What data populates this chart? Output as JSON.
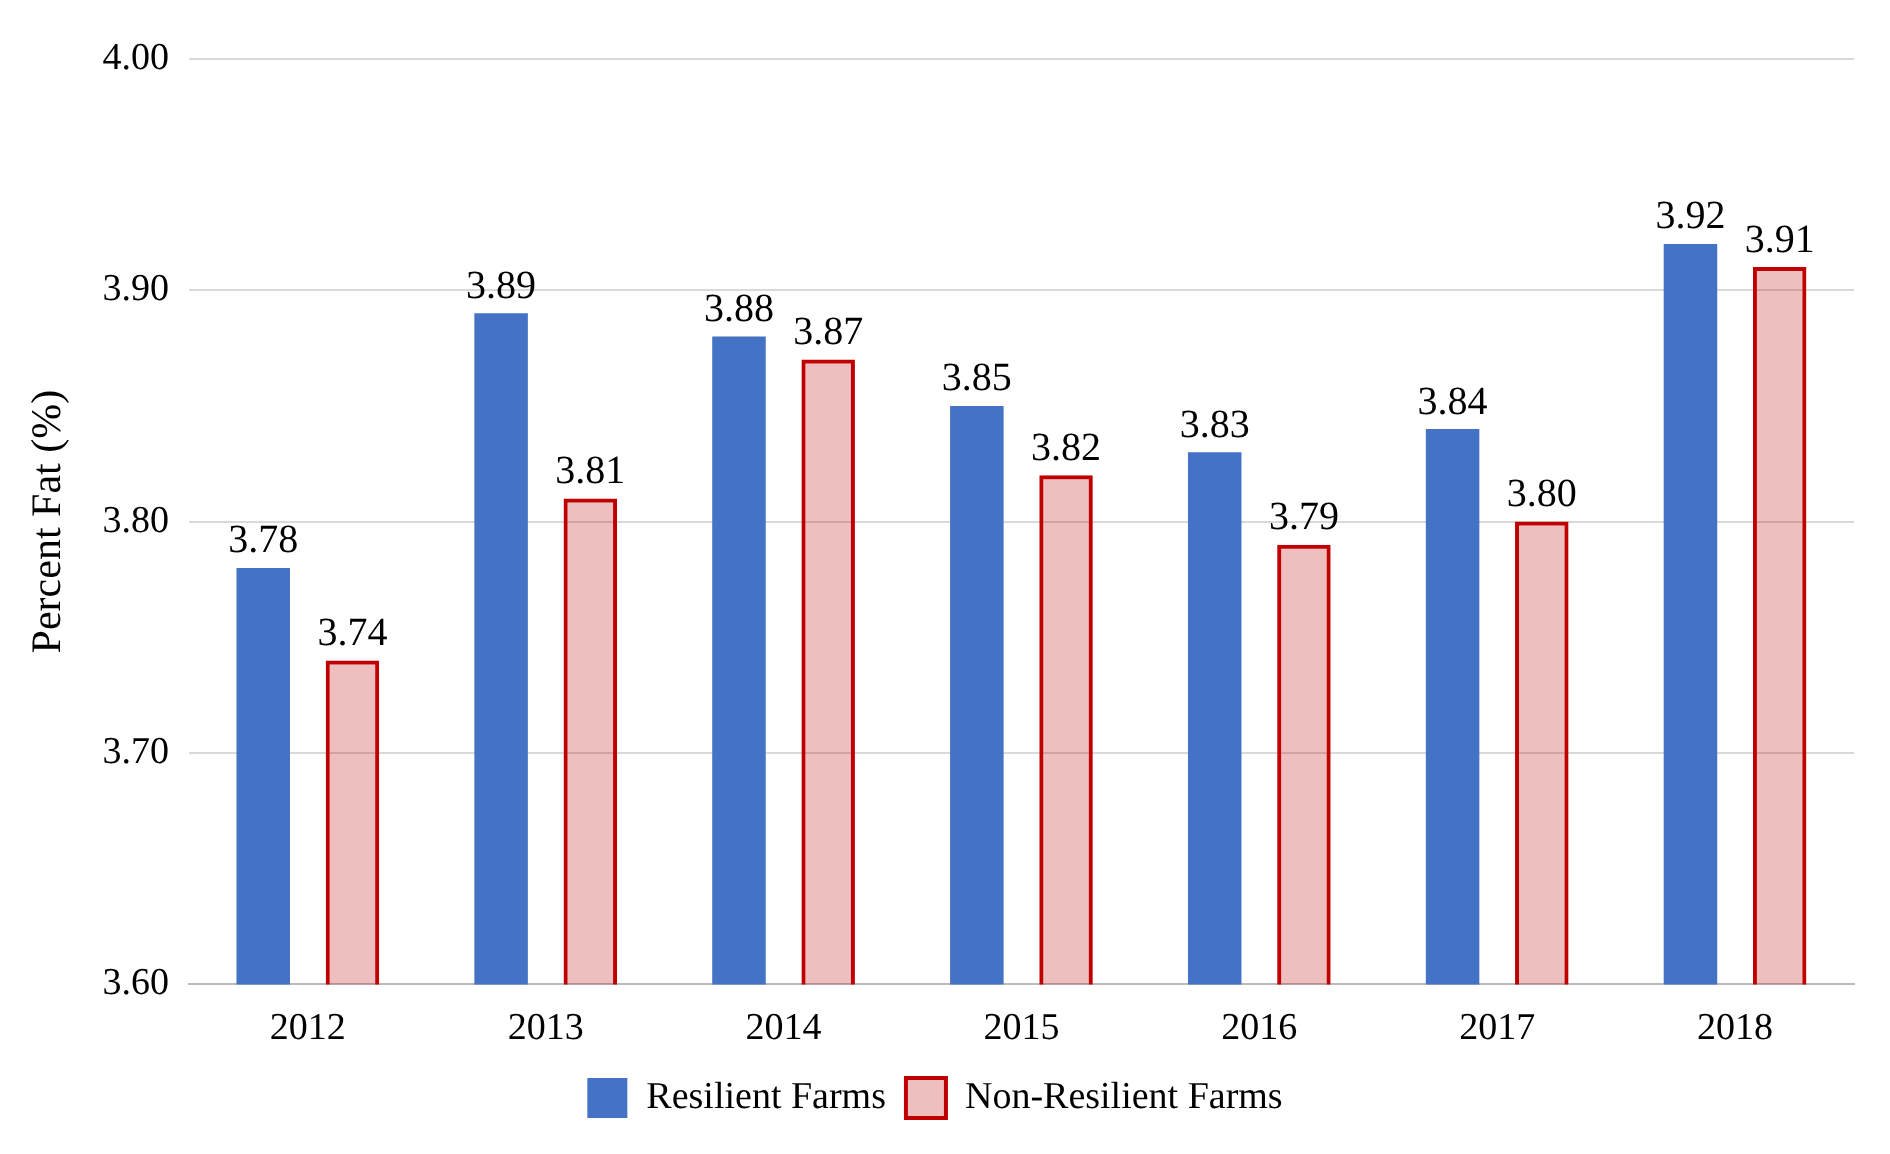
{
  "chart_data": {
    "type": "bar",
    "ylabel": "Percent Fat (%)",
    "categories": [
      "2012",
      "2013",
      "2014",
      "2015",
      "2016",
      "2017",
      "2018"
    ],
    "series": [
      {
        "name": "Resilient Farms",
        "color": "#4472c4",
        "values": [
          3.78,
          3.89,
          3.88,
          3.85,
          3.83,
          3.84,
          3.92
        ],
        "value_labels": [
          "3.78",
          "3.89",
          "3.88",
          "3.85",
          "3.83",
          "3.84",
          "3.92"
        ]
      },
      {
        "name": "Non-Resilient Farms",
        "color": "#c00000",
        "values": [
          3.74,
          3.81,
          3.87,
          3.82,
          3.79,
          3.8,
          3.91
        ],
        "value_labels": [
          "3.74",
          "3.81",
          "3.87",
          "3.82",
          "3.79",
          "3.80",
          "3.91"
        ]
      }
    ],
    "ylim": [
      3.6,
      4.0
    ],
    "yticks": [
      {
        "value": 3.6,
        "label": "3.60"
      },
      {
        "value": 3.7,
        "label": "3.70"
      },
      {
        "value": 3.8,
        "label": "3.80"
      },
      {
        "value": 3.9,
        "label": "3.90"
      },
      {
        "value": 4.0,
        "label": "4.00"
      }
    ],
    "grid": "y",
    "legend": "bottom"
  }
}
